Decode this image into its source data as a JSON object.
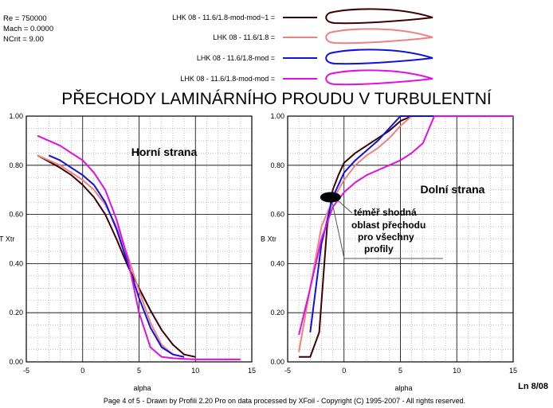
{
  "params": {
    "re": "Re = 750000",
    "mach": "Mach = 0.0000",
    "ncrit": "NCrit = 9.00"
  },
  "title": "PŘECHODY  LAMINÁRNÍHO  PROUDU  V  TURBULENTNÍ",
  "footer": {
    "text": "Page 4 of 5   -   Drawn by Profili 2.20 Pro on data processed by  XFoil - Copyright (C) 1995-2007 - All rights reserved.",
    "code": "Ln 8/08"
  },
  "colors": {
    "mod_mod_1": "#3d0000",
    "orig": "#f08080",
    "mod": "#1010e0",
    "mod_mod": "#e010e0"
  },
  "chart_data": [
    {
      "type": "line",
      "panel": "left",
      "annotation": "Horní  strana",
      "xlabel": "alpha",
      "ylabel": "T Xtr",
      "xlim": [
        -5,
        15
      ],
      "ylim": [
        0,
        1
      ],
      "xticks": [
        "-5",
        "0",
        "5",
        "10",
        "15"
      ],
      "yticks": [
        "0.00",
        "0.20",
        "0.40",
        "0.60",
        "0.80",
        "1.00"
      ],
      "grid": true,
      "series": [
        {
          "name": "LHK  08 - 11.6/1.8-mod-mod~1 =",
          "color_key": "mod_mod_1",
          "x": [
            -4,
            -2,
            -1,
            0,
            1,
            2,
            3,
            4,
            5,
            6,
            7,
            8,
            9,
            10
          ],
          "y": [
            0.84,
            0.79,
            0.76,
            0.72,
            0.67,
            0.6,
            0.5,
            0.39,
            0.3,
            0.21,
            0.13,
            0.07,
            0.03,
            0.02
          ]
        },
        {
          "name": "LHK  08 - 11.6/1.8 =",
          "color_key": "orig",
          "x": [
            -4,
            -3,
            -2,
            -1,
            0,
            1,
            2,
            3,
            4,
            5,
            6,
            7,
            8,
            9
          ],
          "y": [
            0.84,
            0.82,
            0.8,
            0.77,
            0.74,
            0.7,
            0.64,
            0.55,
            0.43,
            0.29,
            0.16,
            0.07,
            0.03,
            0.02
          ]
        },
        {
          "name": "LHK  08 - 11.6/1.8-mod =",
          "color_key": "mod",
          "x": [
            -3,
            -2,
            -1,
            0,
            1,
            2,
            3,
            4,
            5,
            6,
            7,
            8,
            9
          ],
          "y": [
            0.84,
            0.82,
            0.79,
            0.76,
            0.72,
            0.65,
            0.54,
            0.4,
            0.26,
            0.14,
            0.06,
            0.03,
            0.02
          ]
        },
        {
          "name": "LHK  08 - 11.6/1.8-mod-mod =",
          "color_key": "mod_mod",
          "x": [
            -4,
            -3,
            -2,
            -1,
            0,
            1,
            2,
            3,
            4,
            5,
            6,
            7,
            8,
            9,
            10,
            11,
            12,
            13,
            14
          ],
          "y": [
            0.92,
            0.9,
            0.88,
            0.85,
            0.82,
            0.77,
            0.7,
            0.58,
            0.42,
            0.2,
            0.06,
            0.02,
            0.015,
            0.012,
            0.01,
            0.01,
            0.01,
            0.01,
            0.01
          ]
        }
      ]
    },
    {
      "type": "line",
      "panel": "right",
      "annotation": "Dolní  strana",
      "note": [
        "téměř shodná",
        "oblast přechodu",
        "pro všechny",
        "profily"
      ],
      "xlabel": "alpha",
      "ylabel": "B Xtr",
      "xlim": [
        -5,
        15
      ],
      "ylim": [
        0,
        1
      ],
      "xticks": [
        "-5",
        "0",
        "5",
        "10",
        "15"
      ],
      "yticks": [
        "0.00",
        "0.20",
        "0.40",
        "0.60",
        "0.80",
        "1.00"
      ],
      "grid": true,
      "ellipse": {
        "x": -1.2,
        "y": 0.67
      },
      "series": [
        {
          "name": "LHK  08 - 11.6/1.8-mod-mod~1 =",
          "color_key": "mod_mod_1",
          "x": [
            -4,
            -3,
            -2.2,
            -1.5,
            -1,
            -0.5,
            0,
            1,
            2,
            3,
            4,
            5,
            6,
            8,
            10,
            15
          ],
          "y": [
            0.02,
            0.02,
            0.12,
            0.55,
            0.7,
            0.76,
            0.81,
            0.85,
            0.88,
            0.91,
            0.94,
            0.98,
            1.0,
            1.0,
            1.0,
            1.0
          ]
        },
        {
          "name": "LHK  08 - 11.6/1.8 =",
          "color_key": "orig",
          "x": [
            -4,
            -3,
            -2,
            -1,
            0,
            1,
            2,
            3,
            4,
            5,
            6,
            8,
            10,
            15
          ],
          "y": [
            0.04,
            0.3,
            0.55,
            0.66,
            0.74,
            0.8,
            0.84,
            0.87,
            0.91,
            0.96,
            1.0,
            1.0,
            1.0,
            1.0
          ]
        },
        {
          "name": "LHK  08 - 11.6/1.8-mod =",
          "color_key": "mod",
          "x": [
            -3,
            -2,
            -1,
            0,
            1,
            2,
            3,
            4,
            5,
            6,
            8,
            10,
            15
          ],
          "y": [
            0.12,
            0.48,
            0.67,
            0.77,
            0.82,
            0.86,
            0.9,
            0.95,
            1.0,
            1.0,
            1.0,
            1.0,
            1.0
          ]
        },
        {
          "name": "LHK  08 - 11.6/1.8-mod-mod =",
          "color_key": "mod_mod",
          "x": [
            -4,
            -3,
            -2,
            -1,
            0,
            1,
            2,
            3,
            4,
            5,
            6,
            7,
            8,
            10,
            12,
            15
          ],
          "y": [
            0.11,
            0.3,
            0.5,
            0.63,
            0.69,
            0.73,
            0.76,
            0.78,
            0.8,
            0.82,
            0.85,
            0.89,
            1.0,
            1.0,
            1.0,
            1.0
          ]
        }
      ]
    }
  ]
}
